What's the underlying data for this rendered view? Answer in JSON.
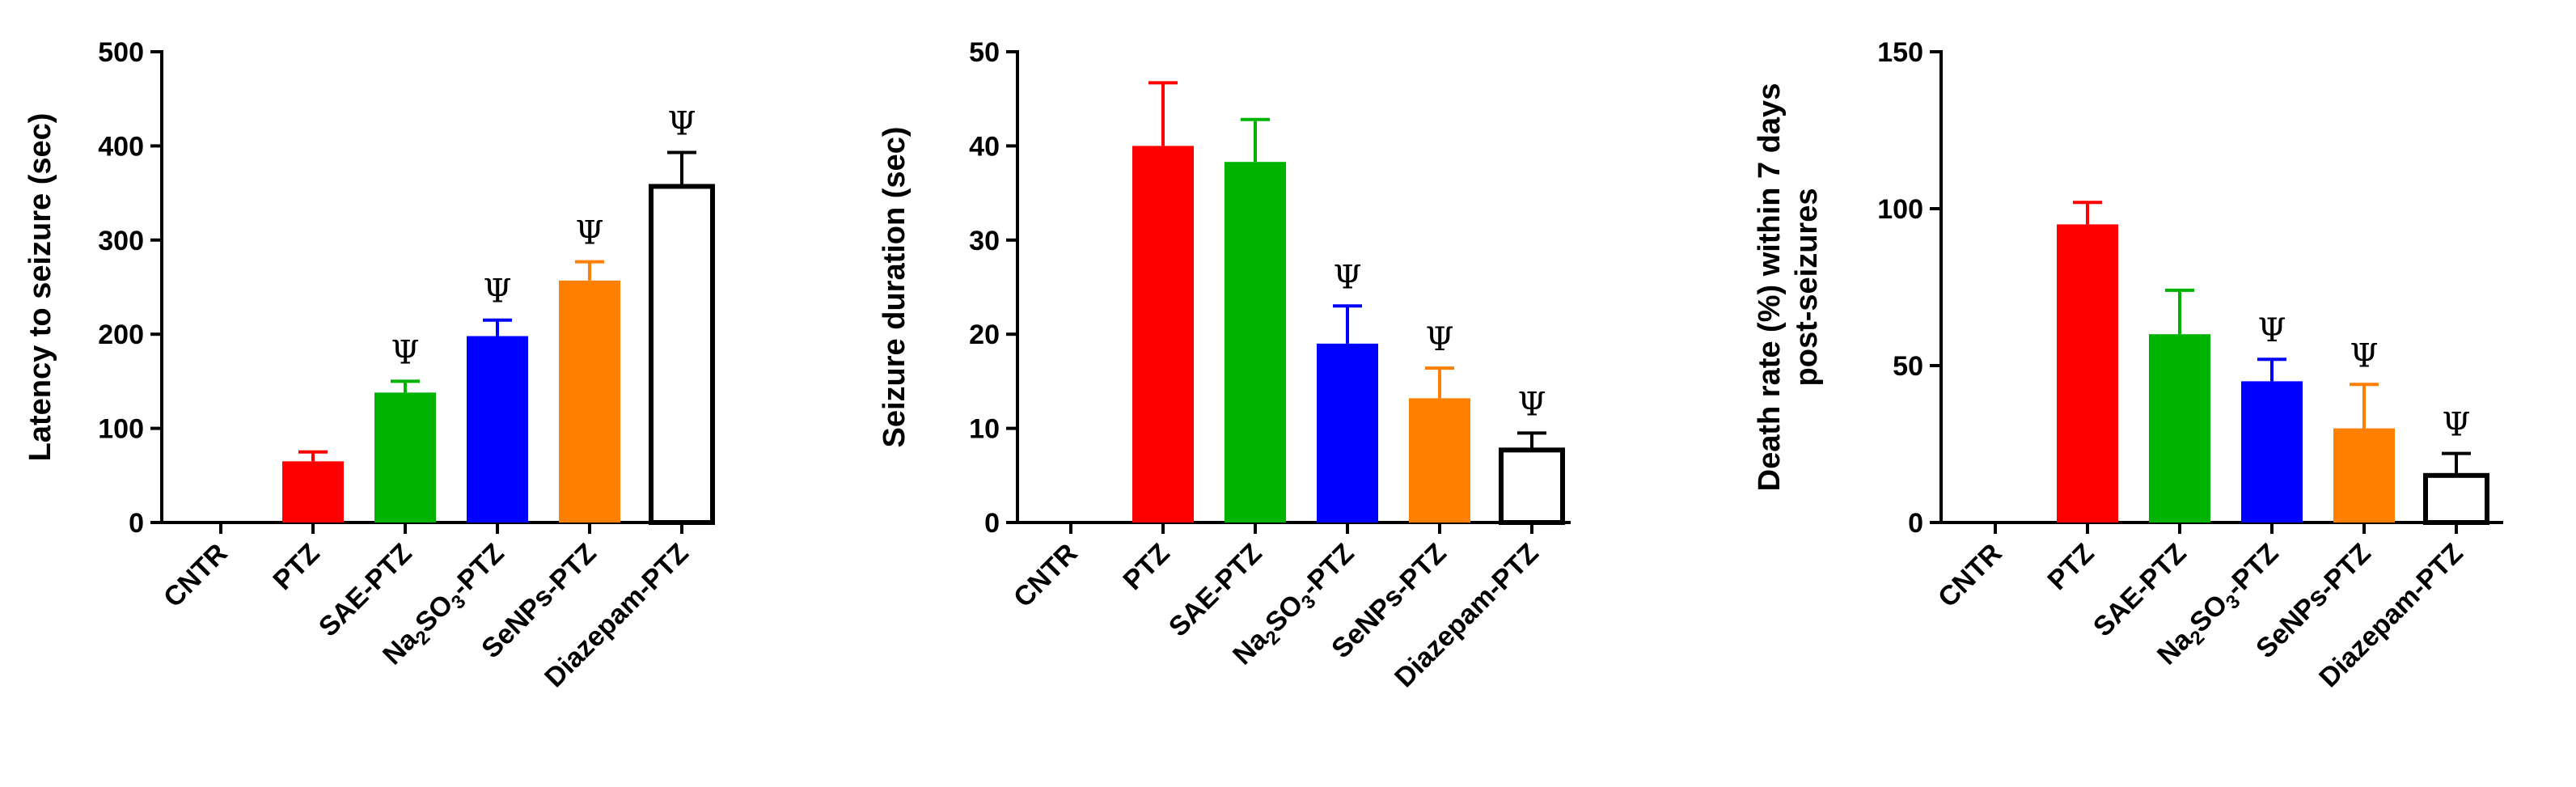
{
  "chart_data": [
    {
      "type": "bar",
      "ylabel": "Latency to seizure (sec)",
      "ylim": [
        0,
        500
      ],
      "yticks": [
        0,
        100,
        200,
        300,
        400,
        500
      ],
      "categories": [
        {
          "main": "CNTR"
        },
        {
          "main": "PTZ"
        },
        {
          "main": "SAE-PTZ"
        },
        {
          "pre": "Na",
          "sub1": "2",
          "mid": "SO",
          "sub2": "3",
          "post": "-PTZ"
        },
        {
          "main": "SeNPs-PTZ"
        },
        {
          "main": "Diazepam-PTZ"
        }
      ],
      "values": [
        0,
        65,
        138,
        198,
        257,
        357
      ],
      "errors": [
        0,
        10,
        12,
        17,
        20,
        36
      ],
      "colors": [
        "#000000",
        "#ff0000",
        "#00b300",
        "#0000ff",
        "#ff8000",
        "#ffffff"
      ],
      "significance": [
        "",
        "",
        "Ψ",
        "Ψ",
        "Ψ",
        "Ψ"
      ]
    },
    {
      "type": "bar",
      "ylabel": "Seizure duration (sec)",
      "ylim": [
        0,
        50
      ],
      "yticks": [
        0,
        10,
        20,
        30,
        40,
        50
      ],
      "categories": [
        {
          "main": "CNTR"
        },
        {
          "main": "PTZ"
        },
        {
          "main": "SAE-PTZ"
        },
        {
          "pre": "Na",
          "sub1": "2",
          "mid": "SO",
          "sub2": "3",
          "post": "-PTZ"
        },
        {
          "main": "SeNPs-PTZ"
        },
        {
          "main": "Diazepam-PTZ"
        }
      ],
      "values": [
        0,
        40,
        38.3,
        19,
        13.2,
        7.7
      ],
      "errors": [
        0,
        6.7,
        4.5,
        4,
        3.2,
        1.8
      ],
      "colors": [
        "#000000",
        "#ff0000",
        "#00b300",
        "#0000ff",
        "#ff8000",
        "#ffffff"
      ],
      "significance": [
        "",
        "",
        "",
        "Ψ",
        "Ψ",
        "Ψ"
      ]
    },
    {
      "type": "bar",
      "ylabel_lines": [
        "Death rate (%) within 7 days",
        "post-seizures"
      ],
      "ylim": [
        0,
        150
      ],
      "yticks": [
        0,
        50,
        100,
        150
      ],
      "categories": [
        {
          "main": "CNTR"
        },
        {
          "main": "PTZ"
        },
        {
          "main": "SAE-PTZ"
        },
        {
          "pre": "Na",
          "sub1": "2",
          "mid": "SO",
          "sub2": "3",
          "post": "-PTZ"
        },
        {
          "main": "SeNPs-PTZ"
        },
        {
          "main": "Diazepam-PTZ"
        }
      ],
      "values": [
        0,
        95,
        60,
        45,
        30,
        15
      ],
      "errors": [
        0,
        7,
        14,
        7,
        14,
        7
      ],
      "colors": [
        "#000000",
        "#ff0000",
        "#00b300",
        "#0000ff",
        "#ff8000",
        "#ffffff"
      ],
      "significance": [
        "",
        "",
        "",
        "Ψ",
        "Ψ",
        "Ψ"
      ]
    }
  ]
}
